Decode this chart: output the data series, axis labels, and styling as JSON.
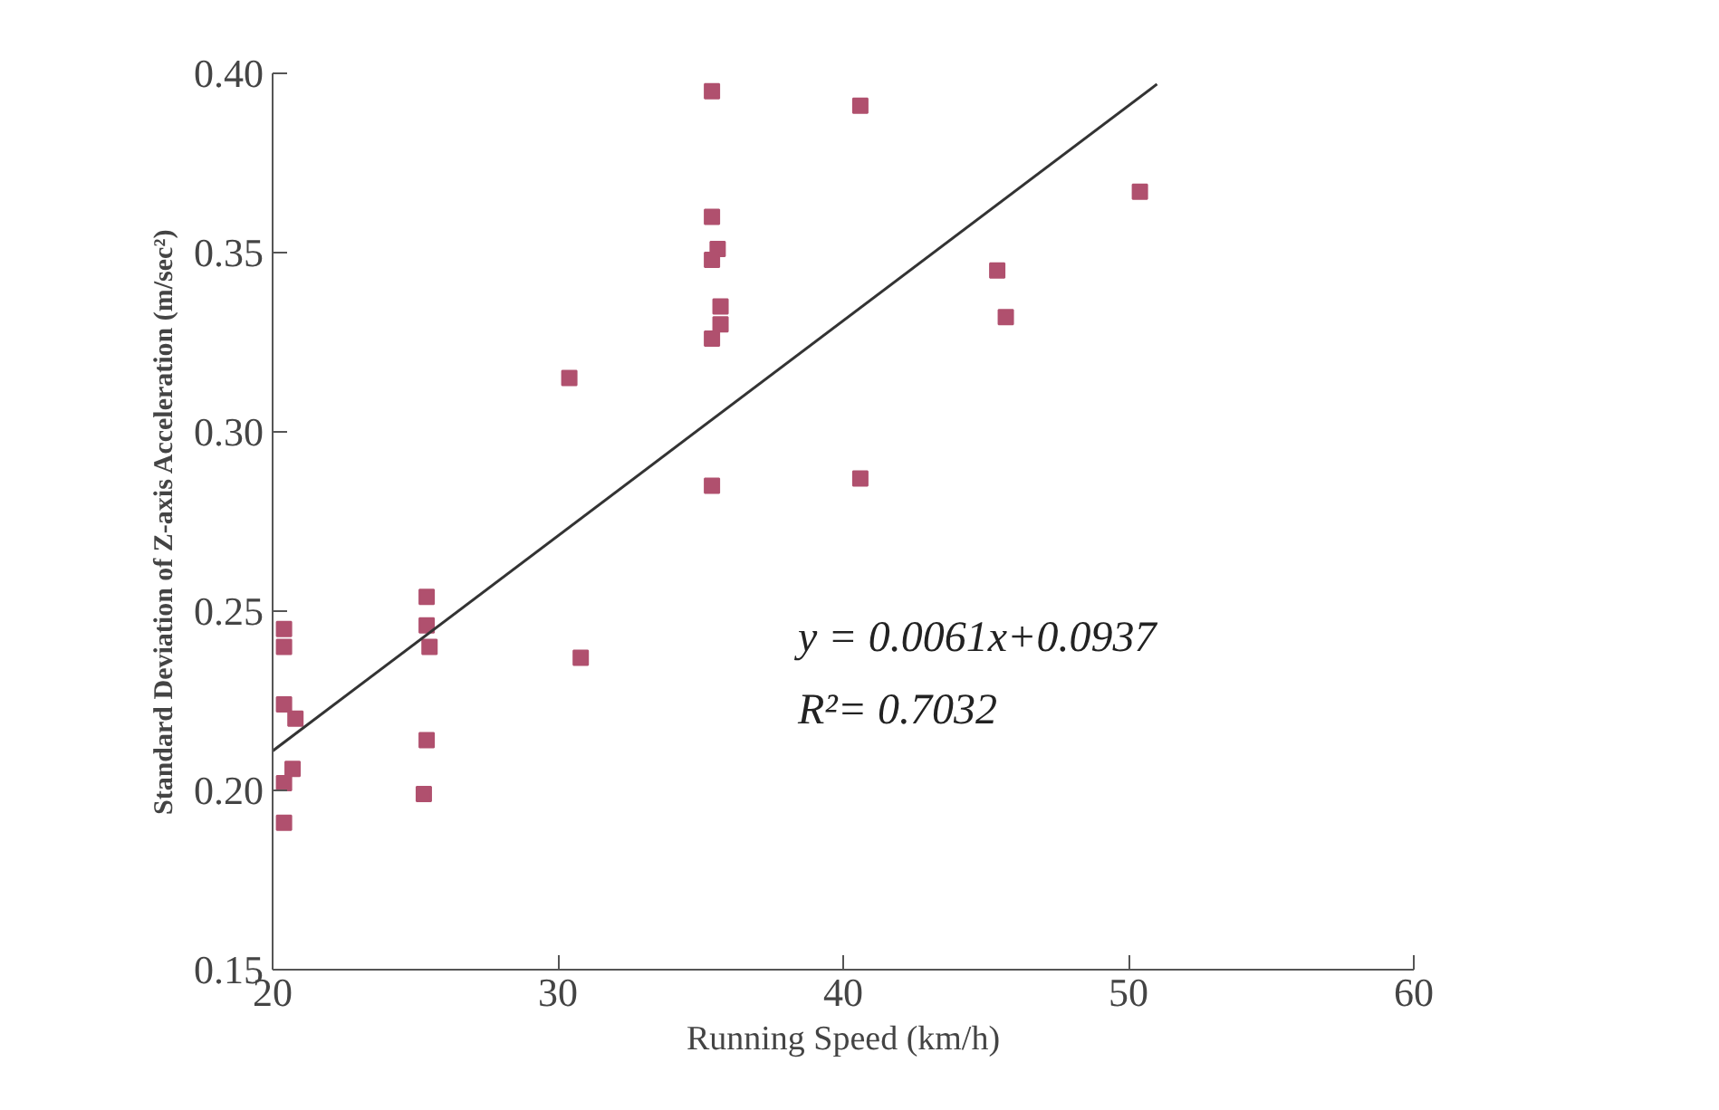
{
  "chart_data": {
    "type": "scatter",
    "xlabel": "Running Speed (km/h)",
    "ylabel": "Standard Deviation of Z-axis Acceleration (m/sec²)",
    "xlim": [
      20,
      60
    ],
    "ylim": [
      0.15,
      0.4
    ],
    "xticks": [
      20,
      30,
      40,
      50,
      60
    ],
    "yticks": [
      0.15,
      {
        "value": 0.2,
        "label": "0.20"
      },
      0.25,
      {
        "value": 0.3,
        "label": "0.30"
      },
      0.35,
      {
        "value": 0.4,
        "label": "0.40"
      }
    ],
    "grid": false,
    "series": [
      {
        "marker": "square",
        "color": "#b0506e",
        "x": [
          35.4,
          35.4,
          35.6,
          35.4,
          35.7,
          35.7,
          35.4,
          30.4,
          35.4,
          25.4,
          25.4,
          25.5,
          30.8,
          20.4,
          20.4,
          20.4,
          20.8,
          25.4,
          20.7,
          20.4,
          25.3,
          20.4,
          40.6,
          50.4,
          45.4,
          45.7,
          40.6
        ],
        "values": [
          0.395,
          0.36,
          0.351,
          0.348,
          0.335,
          0.33,
          0.326,
          0.315,
          0.285,
          0.254,
          0.246,
          0.24,
          0.237,
          0.245,
          0.24,
          0.224,
          0.22,
          0.214,
          0.206,
          0.202,
          0.199,
          0.191,
          0.391,
          0.367,
          0.345,
          0.332,
          0.287
        ]
      },
      {
        "type": "line",
        "marker": "none",
        "color": "#333333",
        "x": [
          20,
          51
        ],
        "values": [
          0.211,
          0.397
        ]
      }
    ],
    "annotations": [
      "y = 0.0061x+0.0937",
      "R²= 0.7032"
    ]
  }
}
